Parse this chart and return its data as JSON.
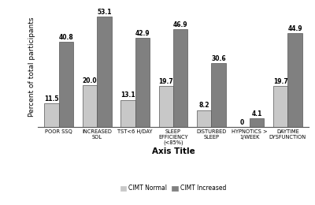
{
  "categories": [
    "POOR SSQ",
    "INCREASED\nSOL",
    "TST<6 H/DAY",
    "SLEEP\nEFFICIENCY\n(<85%)",
    "DISTURBED\nSLEEP",
    "HYPNOTICS >\n1/WEEK",
    "DAYTIME\nDYSFUNCTION"
  ],
  "cimt_normal": [
    11.5,
    20.0,
    13.1,
    19.7,
    8.2,
    0.0,
    19.7
  ],
  "cimt_increased": [
    40.8,
    53.1,
    42.9,
    46.9,
    30.6,
    4.1,
    44.9
  ],
  "color_normal": "#c8c8c8",
  "color_increased": "#808080",
  "ylabel": "Percent of total participants",
  "xlabel": "Axis Title",
  "ylim": [
    0,
    58
  ],
  "legend_normal": "CIMT Normal",
  "legend_increased": "CIMT Increased",
  "bar_width": 0.38,
  "label_fontsize": 5.5,
  "tick_fontsize": 4.8,
  "axis_label_fontsize": 6.5,
  "xlabel_fontsize": 7.5
}
